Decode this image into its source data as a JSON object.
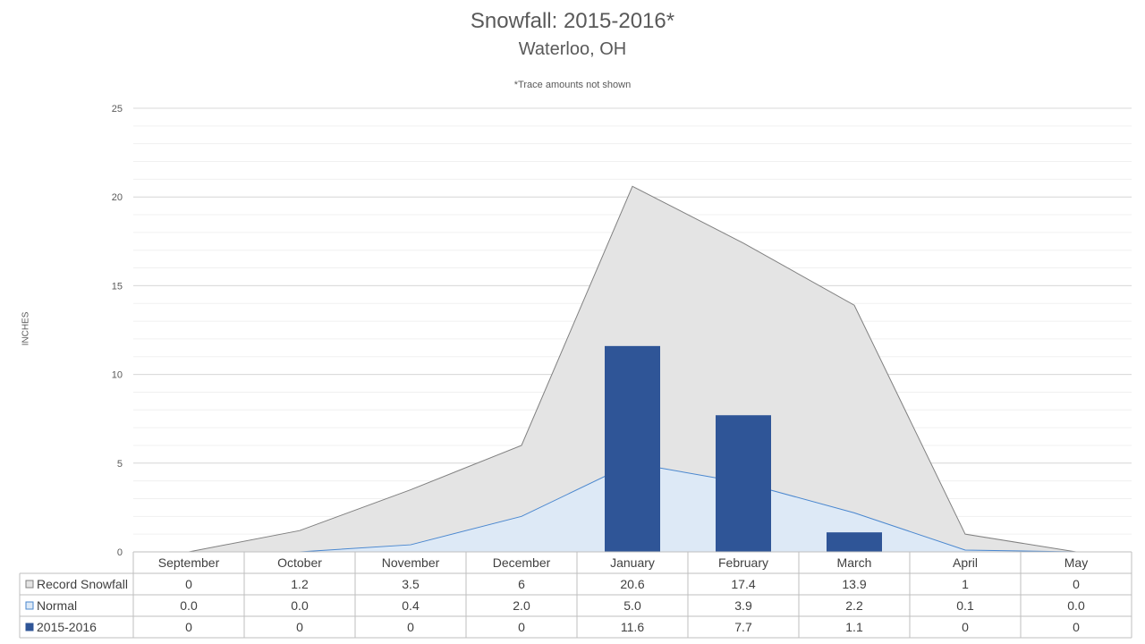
{
  "chart_data": {
    "type": "area",
    "title": "Snowfall: 2015-2016*",
    "subtitle": "Waterloo, OH",
    "note": "*Trace amounts not shown",
    "ylabel": "INCHES",
    "ylim": [
      0,
      25
    ],
    "yticks": [
      0,
      5,
      10,
      15,
      20,
      25
    ],
    "grid": true,
    "categories": [
      "September",
      "October",
      "November",
      "December",
      "January",
      "February",
      "March",
      "April",
      "May"
    ],
    "series": [
      {
        "name": "Record Snowfall",
        "kind": "area",
        "color": "#e4e4e4",
        "line": "#808080",
        "values": [
          0,
          1.2,
          3.5,
          6,
          20.6,
          17.4,
          13.9,
          1,
          0
        ],
        "labels": [
          "0",
          "1.2",
          "3.5",
          "6",
          "20.6",
          "17.4",
          "13.9",
          "1",
          "0"
        ]
      },
      {
        "name": "Normal",
        "kind": "area",
        "color": "#dde9f6",
        "line": "#4a87cf",
        "values": [
          0.0,
          0.0,
          0.4,
          2.0,
          5.0,
          3.9,
          2.2,
          0.1,
          0.0
        ],
        "labels": [
          "0.0",
          "0.0",
          "0.4",
          "2.0",
          "5.0",
          "3.9",
          "2.2",
          "0.1",
          "0.0"
        ]
      },
      {
        "name": "2015-2016",
        "kind": "bar",
        "color": "#2f5597",
        "values": [
          0,
          0,
          0,
          0,
          11.6,
          7.7,
          1.1,
          0,
          0
        ],
        "labels": [
          "0",
          "0",
          "0",
          "0",
          "11.6",
          "7.7",
          "1.1",
          "0",
          "0"
        ]
      }
    ]
  }
}
